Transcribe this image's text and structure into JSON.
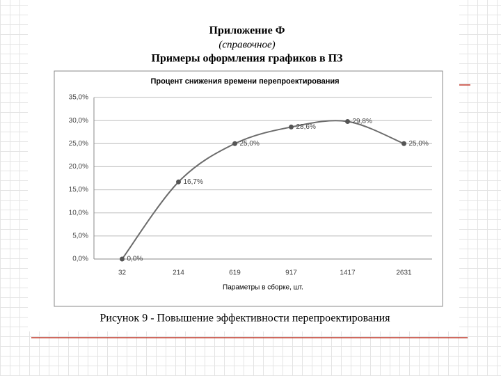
{
  "header": {
    "appendix": "Приложение Ф",
    "note": "(справочное)",
    "title": "Примеры оформления графиков в ПЗ"
  },
  "chart_data": {
    "type": "line",
    "title": "Процент снижения времени перепроектирования",
    "x_label": "Параметры в сборке, шт.",
    "categories": [
      "32",
      "214",
      "619",
      "917",
      "1417",
      "2631"
    ],
    "values": [
      0,
      16.7,
      25,
      28.6,
      29.8,
      25
    ],
    "value_labels": [
      "0,0%",
      "16,7%",
      "25,0%",
      "28,6%",
      "29,8%",
      "25,0%"
    ],
    "color": "#6b6b6b",
    "ylim": [
      0,
      35
    ],
    "yticks": [
      {
        "value": 0,
        "label": "0,0%"
      },
      {
        "value": 5,
        "label": "5,0%"
      },
      {
        "value": 10,
        "label": "10,0%"
      },
      {
        "value": 15,
        "label": "15,0%"
      },
      {
        "value": 20,
        "label": "20,0%"
      },
      {
        "value": 25,
        "label": "25,0%"
      },
      {
        "value": 30,
        "label": "30,0%"
      },
      {
        "value": 35,
        "label": "35,0%"
      }
    ],
    "grid": true,
    "smooth": true
  },
  "caption": "Рисунок 9 - Повышение эффективности перепроектирования"
}
